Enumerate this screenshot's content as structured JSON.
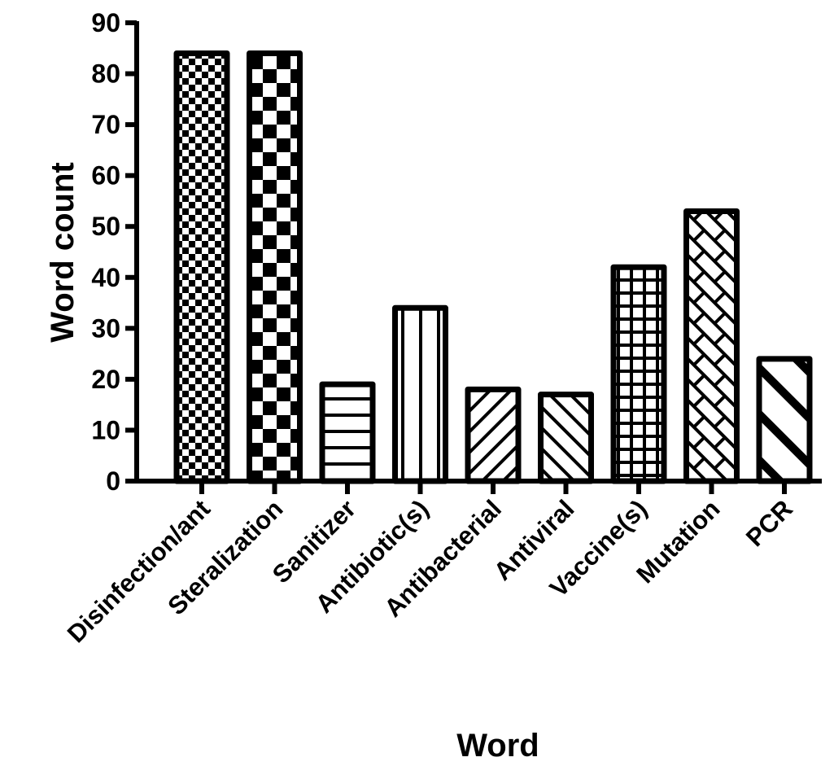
{
  "chart_data": {
    "type": "bar",
    "title": "",
    "xlabel": "Word",
    "ylabel": "Word count",
    "ylim": [
      0,
      90
    ],
    "yticks": [
      0,
      10,
      20,
      30,
      40,
      50,
      60,
      70,
      80,
      90
    ],
    "grid": false,
    "legend": "none",
    "categories": [
      "Disinfection/ant",
      "Steralization",
      "Sanitizer",
      "Antibiotic(s)",
      "Antibacterial",
      "Antiviral",
      "Vaccine(s)",
      "Mutation",
      "PCR"
    ],
    "values": [
      84,
      84,
      19,
      34,
      18,
      17,
      42,
      53,
      24
    ],
    "fill_patterns": [
      "small-checker",
      "large-checker",
      "horizontal-lines",
      "vertical-lines",
      "diagonal-lines-up",
      "diagonal-lines-down",
      "grid",
      "brick-diagonal",
      "wide-diagonal-down"
    ],
    "colors": {
      "stroke": "#000000",
      "fill": "#ffffff"
    }
  }
}
